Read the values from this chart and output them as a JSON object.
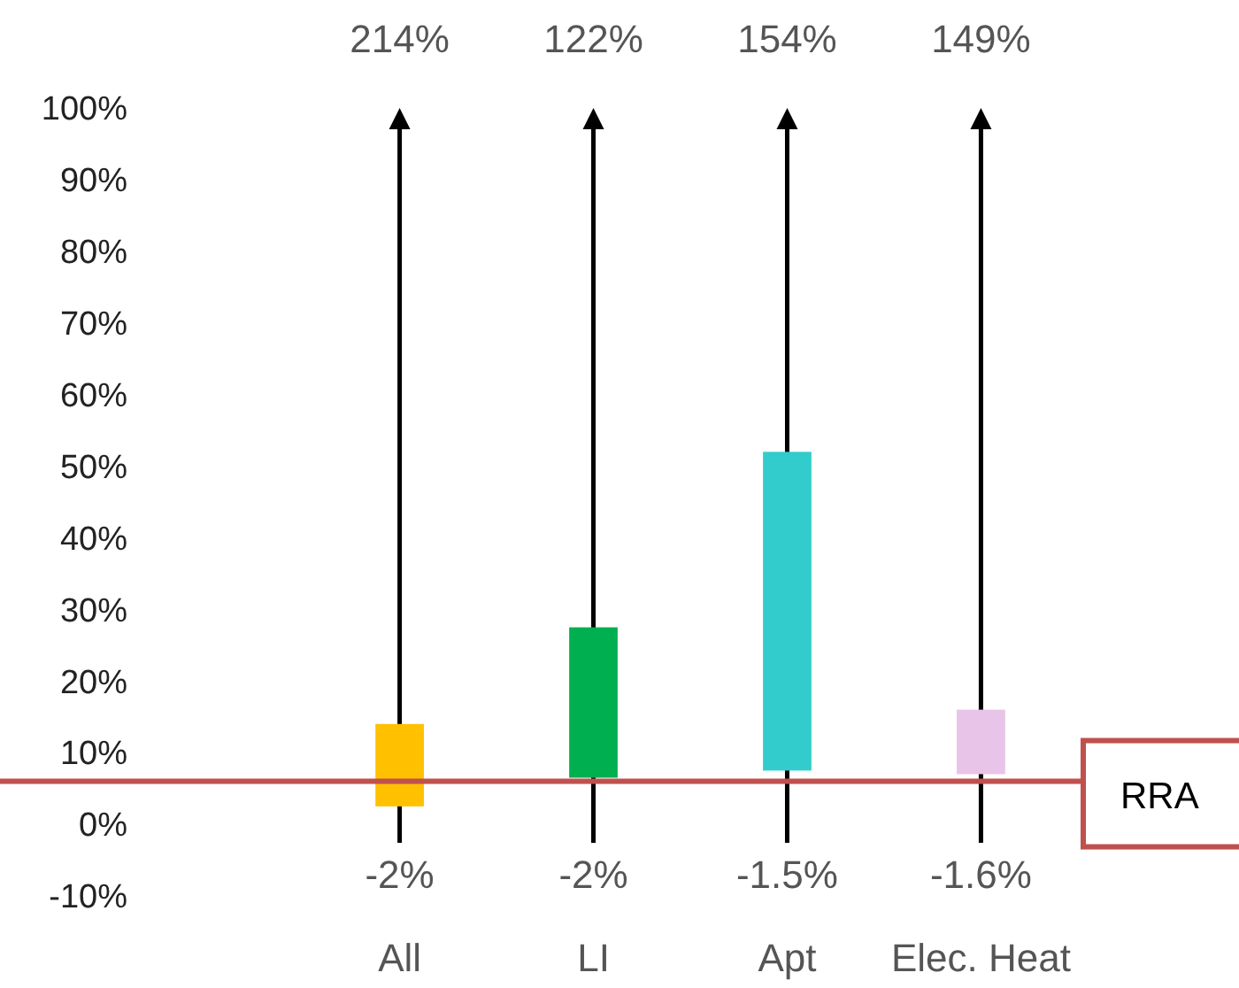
{
  "chart_data": {
    "type": "bar",
    "categories": [
      "All",
      "LI",
      "Apt",
      "Elec. Heat"
    ],
    "base": [
      2.5,
      6.5,
      7.5,
      7
    ],
    "values": [
      11.5,
      21,
      44.5,
      9
    ],
    "colors": [
      "#ffc000",
      "#00b050",
      "#33cccc",
      "#e8c4e8"
    ],
    "annotations": [
      "214%",
      "122%",
      "154%",
      "149%",
      "-2%",
      "-2%",
      "-1.5%",
      "-1.6%"
    ],
    "ref_lines": [
      {
        "axis": "y",
        "value": 6,
        "label": "RRA",
        "color": "#c0504d"
      }
    ],
    "ylim": [
      -10,
      100
    ],
    "yticks": [
      {
        "value": -10,
        "label": "-10%"
      },
      {
        "value": 0,
        "label": "0%"
      },
      {
        "value": 10,
        "label": "10%"
      },
      {
        "value": 20,
        "label": "20%"
      },
      {
        "value": 30,
        "label": "30%"
      },
      {
        "value": 40,
        "label": "40%"
      },
      {
        "value": 50,
        "label": "50%"
      },
      {
        "value": 60,
        "label": "60%"
      },
      {
        "value": 70,
        "label": "70%"
      },
      {
        "value": 80,
        "label": "80%"
      },
      {
        "value": 90,
        "label": "90%"
      },
      {
        "value": 100,
        "label": "100%"
      }
    ]
  }
}
